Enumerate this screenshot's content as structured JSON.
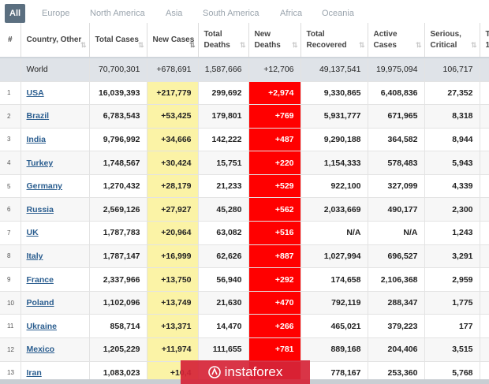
{
  "tabs": [
    "All",
    "Europe",
    "North America",
    "Asia",
    "South America",
    "Africa",
    "Oceania"
  ],
  "active_tab": "All",
  "columns": [
    {
      "key": "rank",
      "label": "#"
    },
    {
      "key": "country",
      "label": "Country, Other"
    },
    {
      "key": "total_cases",
      "label": "Total Cases"
    },
    {
      "key": "new_cases",
      "label": "New Cases"
    },
    {
      "key": "total_deaths",
      "label": "Total Deaths"
    },
    {
      "key": "new_deaths",
      "label": "New Deaths"
    },
    {
      "key": "total_recovered",
      "label": "Total Recovered"
    },
    {
      "key": "active_cases",
      "label": "Active Cases"
    },
    {
      "key": "serious_critical",
      "label": "Serious, Critical"
    },
    {
      "key": "more",
      "label": "T 1"
    }
  ],
  "sorted_column": "new_cases",
  "world": {
    "country": "World",
    "total_cases": "70,700,301",
    "new_cases": "+678,691",
    "total_deaths": "1,587,666",
    "new_deaths": "+12,706",
    "total_recovered": "49,137,541",
    "active_cases": "19,975,094",
    "serious_critical": "106,717"
  },
  "rows": [
    {
      "rank": "1",
      "country": "USA",
      "total_cases": "16,039,393",
      "new_cases": "+217,779",
      "total_deaths": "299,692",
      "new_deaths": "+2,974",
      "total_recovered": "9,330,865",
      "active_cases": "6,408,836",
      "serious_critical": "27,352"
    },
    {
      "rank": "2",
      "country": "Brazil",
      "total_cases": "6,783,543",
      "new_cases": "+53,425",
      "total_deaths": "179,801",
      "new_deaths": "+769",
      "total_recovered": "5,931,777",
      "active_cases": "671,965",
      "serious_critical": "8,318"
    },
    {
      "rank": "3",
      "country": "India",
      "total_cases": "9,796,992",
      "new_cases": "+34,666",
      "total_deaths": "142,222",
      "new_deaths": "+487",
      "total_recovered": "9,290,188",
      "active_cases": "364,582",
      "serious_critical": "8,944"
    },
    {
      "rank": "4",
      "country": "Turkey",
      "total_cases": "1,748,567",
      "new_cases": "+30,424",
      "total_deaths": "15,751",
      "new_deaths": "+220",
      "total_recovered": "1,154,333",
      "active_cases": "578,483",
      "serious_critical": "5,943"
    },
    {
      "rank": "5",
      "country": "Germany",
      "total_cases": "1,270,432",
      "new_cases": "+28,179",
      "total_deaths": "21,233",
      "new_deaths": "+529",
      "total_recovered": "922,100",
      "active_cases": "327,099",
      "serious_critical": "4,339"
    },
    {
      "rank": "6",
      "country": "Russia",
      "total_cases": "2,569,126",
      "new_cases": "+27,927",
      "total_deaths": "45,280",
      "new_deaths": "+562",
      "total_recovered": "2,033,669",
      "active_cases": "490,177",
      "serious_critical": "2,300"
    },
    {
      "rank": "7",
      "country": "UK",
      "total_cases": "1,787,783",
      "new_cases": "+20,964",
      "total_deaths": "63,082",
      "new_deaths": "+516",
      "total_recovered": "N/A",
      "active_cases": "N/A",
      "serious_critical": "1,243"
    },
    {
      "rank": "8",
      "country": "Italy",
      "total_cases": "1,787,147",
      "new_cases": "+16,999",
      "total_deaths": "62,626",
      "new_deaths": "+887",
      "total_recovered": "1,027,994",
      "active_cases": "696,527",
      "serious_critical": "3,291"
    },
    {
      "rank": "9",
      "country": "France",
      "total_cases": "2,337,966",
      "new_cases": "+13,750",
      "total_deaths": "56,940",
      "new_deaths": "+292",
      "total_recovered": "174,658",
      "active_cases": "2,106,368",
      "serious_critical": "2,959"
    },
    {
      "rank": "10",
      "country": "Poland",
      "total_cases": "1,102,096",
      "new_cases": "+13,749",
      "total_deaths": "21,630",
      "new_deaths": "+470",
      "total_recovered": "792,119",
      "active_cases": "288,347",
      "serious_critical": "1,775"
    },
    {
      "rank": "11",
      "country": "Ukraine",
      "total_cases": "858,714",
      "new_cases": "+13,371",
      "total_deaths": "14,470",
      "new_deaths": "+266",
      "total_recovered": "465,021",
      "active_cases": "379,223",
      "serious_critical": "177"
    },
    {
      "rank": "12",
      "country": "Mexico",
      "total_cases": "1,205,229",
      "new_cases": "+11,974",
      "total_deaths": "111,655",
      "new_deaths": "+781",
      "total_recovered": "889,168",
      "active_cases": "204,406",
      "serious_critical": "3,515"
    },
    {
      "rank": "13",
      "country": "Iran",
      "total_cases": "1,083,023",
      "new_cases": "+10,4",
      "total_deaths": "",
      "new_deaths": "",
      "total_recovered": "778,167",
      "active_cases": "253,360",
      "serious_critical": "5,768"
    }
  ],
  "watermark": {
    "text": "instaforex",
    "logo_icon": "instaforex-logo-icon"
  },
  "colors": {
    "tab_active": "#5b6f80",
    "new_cases_bg": "#fbf3a6",
    "new_deaths_bg": "#ff0000",
    "world_row_bg": "#dfe3e8",
    "link": "#2a5d8f",
    "watermark_bg": "#d62437"
  }
}
